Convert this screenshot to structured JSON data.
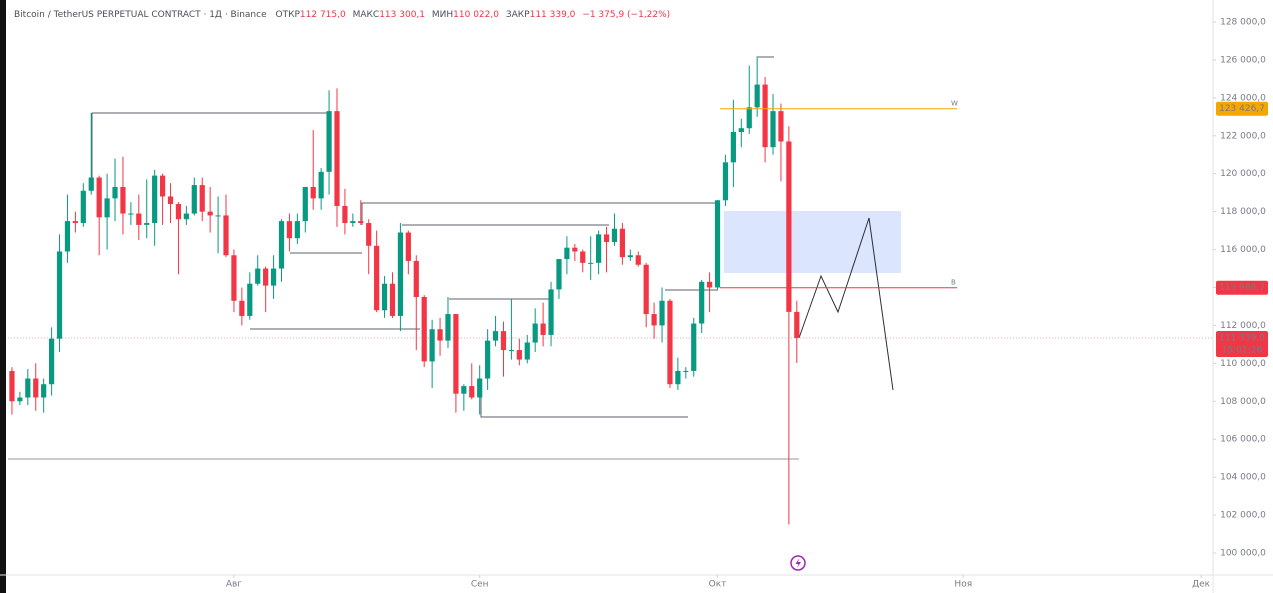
{
  "chart_data": {
    "type": "candlestick",
    "title": "Bitcoin / TetherUS PERPETUAL CONTRACT · 1Д · Binance",
    "ohlc_legend": [
      {
        "label": "ОТКР",
        "value": "112 715,0"
      },
      {
        "label": "МАКС",
        "value": "113 300,1"
      },
      {
        "label": "МИН",
        "value": "110 022,0"
      },
      {
        "label": "ЗАКР",
        "value": "111 339,0"
      }
    ],
    "change": "−1 375,9 (−1,22%)",
    "up_color": "#089981",
    "down_color": "#f23645",
    "xlim": [
      -0.5,
      151.5
    ],
    "xticks": [
      {
        "value": 28,
        "label": "Авг"
      },
      {
        "value": 59,
        "label": "Сен"
      },
      {
        "value": 89,
        "label": "Окт"
      },
      {
        "value": 120,
        "label": "Ноя"
      },
      {
        "value": 150,
        "label": "Дек"
      }
    ],
    "ylim": [
      98840,
      129160
    ],
    "yticks": [
      {
        "value": 100000,
        "label": "100 000,0"
      },
      {
        "value": 102000,
        "label": "102 000,0"
      },
      {
        "value": 104000,
        "label": "104 000,0"
      },
      {
        "value": 106000,
        "label": "106 000,0"
      },
      {
        "value": 108000,
        "label": "108 000,0"
      },
      {
        "value": 110000,
        "label": "110 000,0"
      },
      {
        "value": 112000,
        "label": "112 000,0"
      },
      {
        "value": 114000,
        "label": "114 000,0"
      },
      {
        "value": 116000,
        "label": "116 000,0"
      },
      {
        "value": 118000,
        "label": "118 000,0"
      },
      {
        "value": 120000,
        "label": "120 000,0"
      },
      {
        "value": 122000,
        "label": "122 000,0"
      },
      {
        "value": 124000,
        "label": "124 000,0"
      },
      {
        "value": 126000,
        "label": "126 000,0"
      },
      {
        "value": 128000,
        "label": "128 000,0"
      }
    ],
    "open": [
      109600,
      108000,
      108200,
      109200,
      108200,
      108900,
      111300,
      115900,
      117500,
      117400,
      119100,
      119800,
      117700,
      118700,
      119300,
      117900,
      117900,
      117300,
      117400,
      119900,
      118800,
      118400,
      117600,
      117900,
      119400,
      118000,
      117800,
      117800,
      115700,
      113300,
      112500,
      114200,
      115000,
      114100,
      115000,
      117500,
      116600,
      117500,
      119300,
      118700,
      120100,
      123300,
      118300,
      117400,
      117500,
      117400,
      116200,
      112800,
      114200,
      112500,
      116900,
      115400,
      113500,
      110100,
      111800,
      111200,
      112600,
      108400,
      108800,
      108200,
      109200,
      111200,
      111700,
      110700,
      110700,
      110200,
      111100,
      112100,
      111500,
      113900,
      115500,
      116100,
      115900,
      115300,
      115300,
      116800,
      116400,
      117100,
      115600,
      115700,
      115200,
      112600,
      112000,
      113300,
      108900,
      109600,
      109600,
      112100,
      114300,
      114000,
      118600,
      120600,
      122200,
      122400,
      123500,
      124700,
      121400,
      123300,
      121700,
      112715
    ],
    "high": [
      109800,
      108500,
      109700,
      110000,
      109200,
      111900,
      116800,
      118900,
      118000,
      119500,
      123200,
      119900,
      120000,
      120800,
      120900,
      118500,
      118900,
      119700,
      120200,
      120000,
      119500,
      118500,
      118300,
      119800,
      119800,
      119300,
      118800,
      118900,
      116000,
      114000,
      114800,
      115700,
      115100,
      115700,
      117600,
      117900,
      117900,
      119300,
      122300,
      120300,
      124400,
      124500,
      119200,
      117900,
      118600,
      117600,
      117000,
      114600,
      114800,
      117400,
      117000,
      115700,
      113600,
      112300,
      112400,
      113500,
      112600,
      108900,
      110000,
      109900,
      111800,
      112500,
      112200,
      113400,
      111300,
      111500,
      112900,
      113200,
      114300,
      115500,
      116700,
      116300,
      116000,
      116700,
      117000,
      117200,
      117900,
      117400,
      116000,
      115900,
      115300,
      113200,
      114000,
      113400,
      110300,
      109800,
      112400,
      114400,
      114800,
      118600,
      121000,
      123900,
      122900,
      125700,
      126200,
      125100,
      124200,
      123700,
      122500,
      113300.1
    ],
    "low": [
      107300,
      107800,
      107800,
      107500,
      107400,
      108300,
      110600,
      115300,
      116900,
      117200,
      118900,
      115700,
      116000,
      117500,
      116800,
      117300,
      116500,
      116600,
      116200,
      117300,
      117400,
      114700,
      117300,
      117800,
      117500,
      116900,
      115800,
      115600,
      112700,
      112000,
      112300,
      114100,
      112700,
      113400,
      114300,
      115900,
      116300,
      116900,
      118100,
      118100,
      118900,
      117200,
      116800,
      117200,
      117300,
      114700,
      112700,
      112400,
      112400,
      111700,
      114700,
      110700,
      109800,
      108700,
      110400,
      110800,
      107400,
      107500,
      108100,
      107300,
      108600,
      110900,
      109300,
      110200,
      109900,
      110000,
      110600,
      110900,
      110900,
      113400,
      114700,
      115400,
      114800,
      114400,
      114700,
      114800,
      116200,
      115200,
      115400,
      115100,
      111900,
      111300,
      111100,
      108700,
      108600,
      109200,
      109300,
      111600,
      112700,
      113900,
      118300,
      119300,
      121400,
      122100,
      123000,
      120600,
      121000,
      119600,
      101500,
      110022
    ],
    "close": [
      108000,
      108200,
      109200,
      108200,
      108900,
      111300,
      115900,
      117500,
      117400,
      119100,
      119800,
      117700,
      118700,
      119300,
      117900,
      117900,
      117300,
      117400,
      119900,
      118800,
      118400,
      117600,
      117900,
      119400,
      118000,
      117800,
      117800,
      115700,
      113300,
      112500,
      114200,
      115000,
      114100,
      115000,
      117500,
      116600,
      117500,
      119300,
      118700,
      120100,
      123300,
      118300,
      117400,
      117500,
      117400,
      116200,
      112800,
      114200,
      112500,
      116900,
      115400,
      113500,
      110100,
      111800,
      111200,
      112600,
      108400,
      108800,
      108200,
      109200,
      111200,
      111700,
      110700,
      110700,
      110200,
      111100,
      112100,
      111500,
      113900,
      115500,
      116100,
      115900,
      115300,
      115300,
      116800,
      116400,
      117100,
      115600,
      115700,
      115200,
      112600,
      112000,
      113300,
      108900,
      109600,
      109600,
      112100,
      114300,
      114000,
      118600,
      120600,
      122200,
      122400,
      123500,
      124700,
      121400,
      123300,
      121700,
      112715,
      111339
    ],
    "levels": [
      {
        "value": 123426.7,
        "label": "123 426,7",
        "tag": "W",
        "color": "#f7a600"
      },
      {
        "value": 113988.7,
        "label": "113 988,7",
        "tag": "B",
        "color": "#f23645"
      }
    ],
    "last_price": {
      "value": 111339,
      "label": "111 339,0",
      "countdown": "15:01:26",
      "color": "#f23645"
    }
  }
}
